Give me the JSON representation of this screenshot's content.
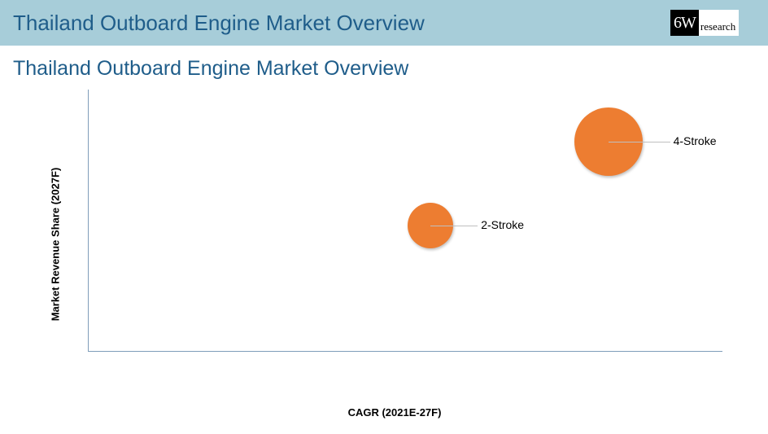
{
  "header": {
    "title": "Thailand Outboard Engine Market Overview",
    "title_color": "#1f5d8a",
    "bar_bg": "#a7cdd9",
    "logo_left": "6W",
    "logo_right": "research"
  },
  "subtitle": {
    "text": "Thailand Outboard Engine Market Overview",
    "color": "#1f5d8a"
  },
  "chart": {
    "type": "bubble",
    "xlabel": "CAGR (2021E-27F)",
    "ylabel": "Market Revenue Share (2027F)",
    "xlim": [
      0,
      100
    ],
    "ylim": [
      0,
      100
    ],
    "axis_color": "#7f9db9",
    "background_color": "#ffffff",
    "label_fontsize": 13,
    "label_fontweight": 700,
    "bubbles": [
      {
        "name": "2-Stroke",
        "x": 54,
        "y": 48,
        "r": 28,
        "color": "#ed7d31",
        "label_side": "right",
        "leader_len": 30
      },
      {
        "name": "4-Stroke",
        "x": 82,
        "y": 80,
        "r": 42,
        "color": "#ed7d31",
        "label_side": "right",
        "leader_len": 34
      }
    ]
  }
}
